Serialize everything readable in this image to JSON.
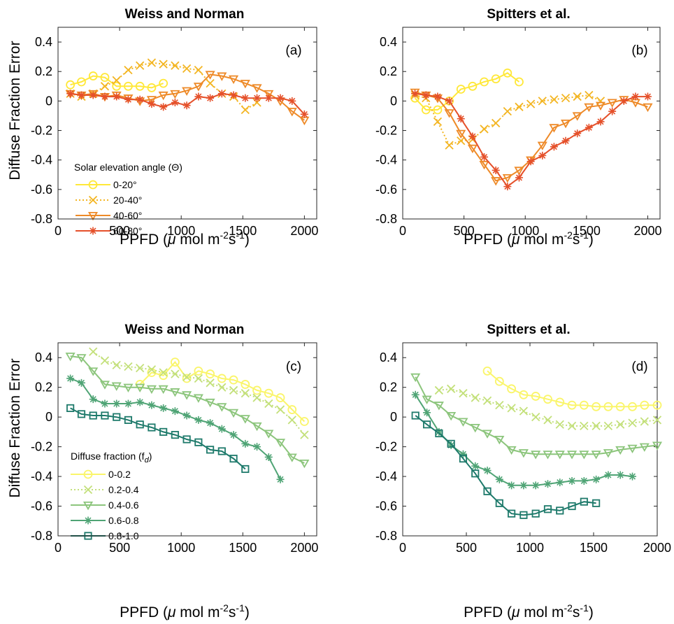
{
  "figure": {
    "label_unit_main": "PPFD (",
    "label_unit_mu": "μ",
    "label_unit_mol": " mol m",
    "label_unit_exp1": "-2",
    "label_unit_s": "s",
    "label_unit_exp2": "-1",
    "label_unit_close": ")"
  },
  "chart_data": [
    {
      "panel": "(a)",
      "type": "line",
      "title": "Weiss and Norman",
      "ylabel": "Diffuse Fraction Error",
      "xlabel": "PPFD (μ mol m-2s-1)",
      "xlim": [
        0,
        2100
      ],
      "ylim": [
        -0.8,
        0.5
      ],
      "xticks": [
        0,
        500,
        1000,
        1500,
        2000
      ],
      "yticks": [
        -0.8,
        -0.6,
        -0.4,
        -0.2,
        0,
        0.2,
        0.4
      ],
      "legend_title": "Solar elevation angle (Θ)",
      "legend_placement": "lower-left",
      "series": [
        {
          "name": "0-20°",
          "color": "#ffe839",
          "marker": "circle",
          "dash": "solid",
          "x": [
            100,
            190,
            285,
            380,
            475,
            570,
            665,
            760,
            855
          ],
          "y": [
            0.11,
            0.13,
            0.17,
            0.16,
            0.1,
            0.1,
            0.1,
            0.09,
            0.12
          ]
        },
        {
          "name": "20-40°",
          "color": "#f3b522",
          "marker": "x",
          "dash": "dotted",
          "x": [
            100,
            190,
            285,
            380,
            475,
            570,
            665,
            760,
            855,
            950,
            1045,
            1140,
            1235,
            1330,
            1425,
            1520,
            1615
          ],
          "y": [
            0.05,
            0.03,
            0.05,
            0.1,
            0.14,
            0.21,
            0.24,
            0.26,
            0.25,
            0.24,
            0.22,
            0.21,
            0.12,
            0.05,
            0.03,
            -0.06,
            -0.01
          ]
        },
        {
          "name": "40-60°",
          "color": "#ee8a28",
          "marker": "triangle",
          "dash": "solid",
          "x": [
            100,
            190,
            285,
            380,
            475,
            570,
            665,
            760,
            855,
            950,
            1045,
            1140,
            1235,
            1330,
            1425,
            1520,
            1615,
            1710,
            1805,
            1900,
            2000
          ],
          "y": [
            0.05,
            0.04,
            0.05,
            0.03,
            0.04,
            0.02,
            0.0,
            0.01,
            0.04,
            0.05,
            0.07,
            0.1,
            0.18,
            0.17,
            0.15,
            0.12,
            0.09,
            0.05,
            0.0,
            -0.07,
            -0.13
          ]
        },
        {
          "name": "60-80°",
          "color": "#e5502a",
          "marker": "asterisk",
          "dash": "solid",
          "x": [
            100,
            190,
            285,
            380,
            475,
            570,
            665,
            760,
            855,
            950,
            1045,
            1140,
            1235,
            1330,
            1425,
            1520,
            1615,
            1710,
            1805,
            1900,
            2000
          ],
          "y": [
            0.05,
            0.04,
            0.04,
            0.03,
            0.03,
            0.01,
            0.01,
            -0.02,
            -0.04,
            -0.01,
            -0.03,
            0.03,
            0.02,
            0.05,
            0.04,
            0.02,
            0.02,
            0.02,
            0.02,
            0.0,
            -0.09
          ]
        }
      ]
    },
    {
      "panel": "(b)",
      "type": "line",
      "title": "Spitters et al.",
      "ylabel": "",
      "xlabel": "PPFD (μ mol m-2s-1)",
      "xlim": [
        0,
        2100
      ],
      "ylim": [
        -0.8,
        0.5
      ],
      "xticks": [
        0,
        500,
        1000,
        1500,
        2000
      ],
      "yticks": [
        -0.8,
        -0.6,
        -0.4,
        -0.2,
        0,
        0.2,
        0.4
      ],
      "series": [
        {
          "name": "0-20°",
          "color": "#ffe839",
          "marker": "circle",
          "dash": "solid",
          "x": [
            100,
            190,
            285,
            380,
            475,
            570,
            665,
            760,
            855,
            950
          ],
          "y": [
            0.02,
            -0.06,
            -0.06,
            0.0,
            0.08,
            0.1,
            0.13,
            0.15,
            0.19,
            0.13
          ]
        },
        {
          "name": "20-40°",
          "color": "#f3b522",
          "marker": "x",
          "dash": "dotted",
          "x": [
            100,
            190,
            285,
            380,
            475,
            570,
            665,
            760,
            855,
            950,
            1045,
            1140,
            1235,
            1330,
            1425,
            1520,
            1615
          ],
          "y": [
            0.04,
            0.02,
            -0.14,
            -0.3,
            -0.27,
            -0.26,
            -0.19,
            -0.15,
            -0.07,
            -0.04,
            -0.02,
            0.0,
            0.01,
            0.02,
            0.03,
            0.04,
            0.0
          ]
        },
        {
          "name": "40-60°",
          "color": "#ee8a28",
          "marker": "triangle",
          "dash": "solid",
          "x": [
            100,
            190,
            285,
            380,
            475,
            570,
            665,
            760,
            855,
            950,
            1045,
            1140,
            1235,
            1330,
            1425,
            1520,
            1615,
            1710,
            1805,
            1900,
            2000
          ],
          "y": [
            0.06,
            0.04,
            0.02,
            -0.08,
            -0.22,
            -0.32,
            -0.43,
            -0.54,
            -0.52,
            -0.47,
            -0.4,
            -0.3,
            -0.18,
            -0.15,
            -0.1,
            -0.04,
            -0.03,
            -0.01,
            0.01,
            -0.01,
            -0.04
          ]
        },
        {
          "name": "60-80°",
          "color": "#e5502a",
          "marker": "asterisk",
          "dash": "solid",
          "x": [
            100,
            190,
            285,
            380,
            475,
            570,
            665,
            760,
            855,
            950,
            1045,
            1140,
            1235,
            1330,
            1425,
            1520,
            1615,
            1710,
            1805,
            1900,
            2000
          ],
          "y": [
            0.05,
            0.04,
            0.03,
            0.0,
            -0.12,
            -0.24,
            -0.38,
            -0.47,
            -0.58,
            -0.52,
            -0.41,
            -0.37,
            -0.31,
            -0.27,
            -0.22,
            -0.18,
            -0.14,
            -0.07,
            0.0,
            0.03,
            0.03
          ]
        }
      ]
    },
    {
      "panel": "(c)",
      "type": "line",
      "title": "Weiss and Norman",
      "ylabel": "Diffuse Fraction Error",
      "xlabel": "PPFD (μ mol m-2s-1)",
      "xlim": [
        0,
        2100
      ],
      "ylim": [
        -0.8,
        0.5
      ],
      "xticks": [
        0,
        500,
        1000,
        1500,
        2000
      ],
      "yticks": [
        -0.8,
        -0.6,
        -0.4,
        -0.2,
        0,
        0.2,
        0.4
      ],
      "legend_title": "Diffuse fraction (f",
      "legend_title_sub": "d",
      "legend_title_end": ")",
      "legend_placement": "lower-left",
      "series": [
        {
          "name": "0-0.2",
          "color": "#faf56a",
          "marker": "circle",
          "dash": "solid",
          "x": [
            665,
            760,
            855,
            950,
            1045,
            1140,
            1235,
            1330,
            1425,
            1520,
            1615,
            1710,
            1805,
            1900,
            2000
          ],
          "y": [
            0.22,
            0.3,
            0.28,
            0.37,
            0.26,
            0.31,
            0.29,
            0.26,
            0.25,
            0.22,
            0.18,
            0.16,
            0.13,
            0.05,
            -0.03
          ]
        },
        {
          "name": "0.2-0.4",
          "color": "#c3e07a",
          "marker": "x",
          "dash": "dotted",
          "x": [
            285,
            380,
            475,
            570,
            665,
            760,
            855,
            950,
            1045,
            1140,
            1235,
            1330,
            1425,
            1520,
            1615,
            1710,
            1805,
            1900,
            2000
          ],
          "y": [
            0.44,
            0.38,
            0.35,
            0.34,
            0.33,
            0.32,
            0.3,
            0.29,
            0.27,
            0.26,
            0.23,
            0.2,
            0.18,
            0.16,
            0.13,
            0.09,
            0.05,
            -0.02,
            -0.12
          ]
        },
        {
          "name": "0.4-0.6",
          "color": "#8cc57c",
          "marker": "triangle",
          "dash": "solid",
          "x": [
            100,
            190,
            285,
            380,
            475,
            570,
            665,
            760,
            855,
            950,
            1045,
            1140,
            1235,
            1330,
            1425,
            1520,
            1615,
            1710,
            1805,
            1900,
            2000
          ],
          "y": [
            0.41,
            0.4,
            0.31,
            0.22,
            0.21,
            0.2,
            0.2,
            0.19,
            0.19,
            0.17,
            0.15,
            0.13,
            0.1,
            0.07,
            0.03,
            -0.01,
            -0.06,
            -0.11,
            -0.17,
            -0.27,
            -0.31
          ]
        },
        {
          "name": "0.6-0.8",
          "color": "#4fa475",
          "marker": "asterisk",
          "dash": "solid",
          "x": [
            100,
            190,
            285,
            380,
            475,
            570,
            665,
            760,
            855,
            950,
            1045,
            1140,
            1235,
            1330,
            1425,
            1520,
            1615,
            1710,
            1805
          ],
          "y": [
            0.26,
            0.23,
            0.12,
            0.09,
            0.09,
            0.09,
            0.1,
            0.08,
            0.06,
            0.04,
            0.01,
            -0.02,
            -0.04,
            -0.08,
            -0.12,
            -0.18,
            -0.2,
            -0.27,
            -0.42
          ]
        },
        {
          "name": "0.8-1.0",
          "color": "#1e7a6b",
          "marker": "square",
          "dash": "solid",
          "x": [
            100,
            190,
            285,
            380,
            475,
            570,
            665,
            760,
            855,
            950,
            1045,
            1140,
            1235,
            1330,
            1425,
            1520
          ],
          "y": [
            0.06,
            0.02,
            0.01,
            0.01,
            0.0,
            -0.02,
            -0.05,
            -0.07,
            -0.1,
            -0.12,
            -0.15,
            -0.17,
            -0.22,
            -0.23,
            -0.28,
            -0.35
          ]
        }
      ]
    },
    {
      "panel": "(d)",
      "type": "line",
      "title": "Spitters et al.",
      "ylabel": "",
      "xlabel": "PPFD (μ mol m-2s-1)",
      "xlim": [
        0,
        2000
      ],
      "ylim": [
        -0.8,
        0.5
      ],
      "xticks": [
        0,
        500,
        1000,
        1500,
        2000
      ],
      "yticks": [
        -0.8,
        -0.6,
        -0.4,
        -0.2,
        0,
        0.2,
        0.4
      ],
      "series": [
        {
          "name": "0-0.2",
          "color": "#faf56a",
          "marker": "circle",
          "dash": "solid",
          "x": [
            665,
            760,
            855,
            950,
            1045,
            1140,
            1235,
            1330,
            1425,
            1520,
            1615,
            1710,
            1805,
            1900,
            2000
          ],
          "y": [
            0.31,
            0.24,
            0.19,
            0.15,
            0.14,
            0.12,
            0.1,
            0.08,
            0.08,
            0.07,
            0.07,
            0.07,
            0.07,
            0.08,
            0.08
          ]
        },
        {
          "name": "0.2-0.4",
          "color": "#c3e07a",
          "marker": "x",
          "dash": "dotted",
          "x": [
            285,
            380,
            475,
            570,
            665,
            760,
            855,
            950,
            1045,
            1140,
            1235,
            1330,
            1425,
            1520,
            1615,
            1710,
            1805,
            1900,
            2000
          ],
          "y": [
            0.18,
            0.19,
            0.16,
            0.13,
            0.11,
            0.08,
            0.06,
            0.04,
            0.0,
            -0.02,
            -0.05,
            -0.06,
            -0.06,
            -0.06,
            -0.06,
            -0.05,
            -0.04,
            -0.03,
            -0.02
          ]
        },
        {
          "name": "0.4-0.6",
          "color": "#8cc57c",
          "marker": "triangle",
          "dash": "solid",
          "x": [
            100,
            190,
            285,
            380,
            475,
            570,
            665,
            760,
            855,
            950,
            1045,
            1140,
            1235,
            1330,
            1425,
            1520,
            1615,
            1710,
            1805,
            1900,
            2000
          ],
          "y": [
            0.27,
            0.12,
            0.08,
            0.01,
            -0.03,
            -0.07,
            -0.11,
            -0.15,
            -0.22,
            -0.24,
            -0.25,
            -0.25,
            -0.25,
            -0.25,
            -0.25,
            -0.25,
            -0.24,
            -0.22,
            -0.21,
            -0.2,
            -0.19
          ]
        },
        {
          "name": "0.6-0.8",
          "color": "#4fa475",
          "marker": "asterisk",
          "dash": "solid",
          "x": [
            100,
            190,
            285,
            380,
            475,
            570,
            665,
            760,
            855,
            950,
            1045,
            1140,
            1235,
            1330,
            1425,
            1520,
            1615,
            1710,
            1805
          ],
          "y": [
            0.15,
            0.03,
            -0.1,
            -0.19,
            -0.25,
            -0.33,
            -0.36,
            -0.42,
            -0.46,
            -0.46,
            -0.46,
            -0.45,
            -0.44,
            -0.43,
            -0.43,
            -0.42,
            -0.39,
            -0.39,
            -0.4
          ]
        },
        {
          "name": "0.8-1.0",
          "color": "#1e7a6b",
          "marker": "square",
          "dash": "solid",
          "x": [
            100,
            190,
            285,
            380,
            475,
            570,
            665,
            760,
            855,
            950,
            1045,
            1140,
            1235,
            1330,
            1425,
            1520
          ],
          "y": [
            0.01,
            -0.05,
            -0.11,
            -0.18,
            -0.28,
            -0.38,
            -0.5,
            -0.58,
            -0.65,
            -0.66,
            -0.65,
            -0.62,
            -0.63,
            -0.6,
            -0.57,
            -0.58
          ]
        }
      ]
    }
  ]
}
